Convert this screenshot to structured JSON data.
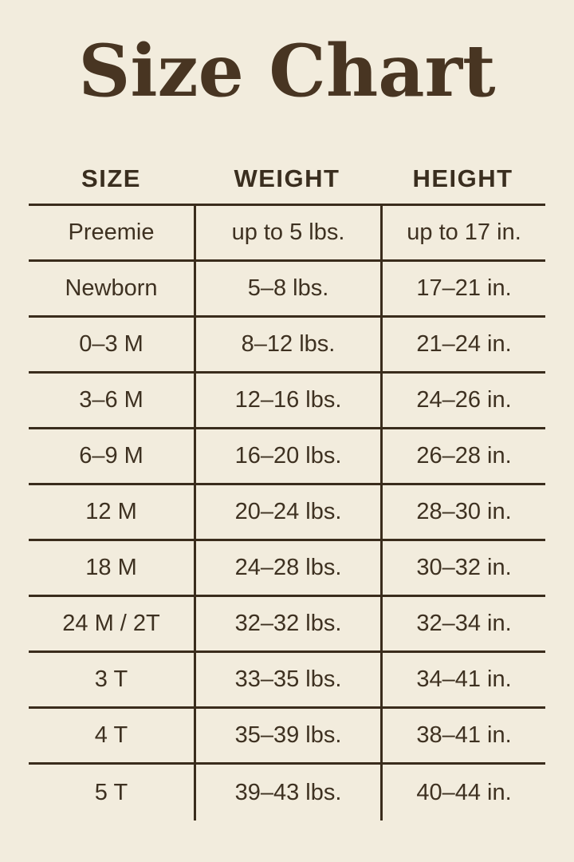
{
  "colors": {
    "background": "#f2ecdd",
    "text": "#3e3121",
    "line": "#3a2c1c",
    "title": "#483522"
  },
  "chart_data": {
    "type": "table",
    "title": "Size Chart",
    "columns": [
      "SIZE",
      "WEIGHT",
      "HEIGHT"
    ],
    "rows": [
      {
        "size": "Preemie",
        "weight": "up to 5 lbs.",
        "height": "up to 17 in."
      },
      {
        "size": "Newborn",
        "weight": "5–8 lbs.",
        "height": "17–21 in."
      },
      {
        "size": "0–3 M",
        "weight": "8–12 lbs.",
        "height": "21–24 in."
      },
      {
        "size": "3–6 M",
        "weight": "12–16 lbs.",
        "height": "24–26 in."
      },
      {
        "size": "6–9 M",
        "weight": "16–20 lbs.",
        "height": "26–28 in."
      },
      {
        "size": "12 M",
        "weight": "20–24 lbs.",
        "height": "28–30 in."
      },
      {
        "size": "18 M",
        "weight": "24–28 lbs.",
        "height": "30–32 in."
      },
      {
        "size": "24 M / 2T",
        "weight": "32–32 lbs.",
        "height": "32–34 in."
      },
      {
        "size": "3 T",
        "weight": "33–35 lbs.",
        "height": "34–41 in."
      },
      {
        "size": "4 T",
        "weight": "35–39 lbs.",
        "height": "38–41 in."
      },
      {
        "size": "5 T",
        "weight": "39–43 lbs.",
        "height": "40–44 in."
      }
    ]
  }
}
